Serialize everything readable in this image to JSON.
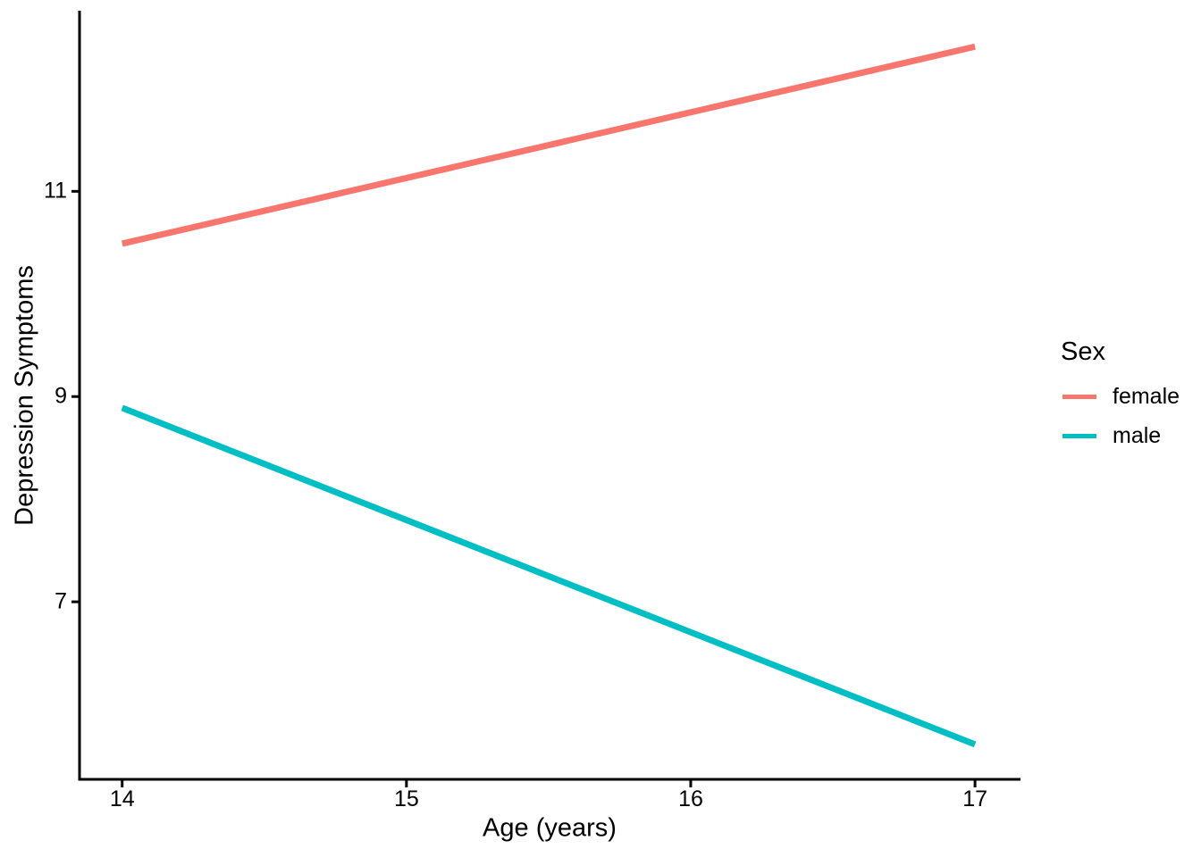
{
  "chart_data": {
    "type": "line",
    "title": "",
    "xlabel": "Age (years)",
    "ylabel": "Depression Symptoms",
    "x_ticks": [
      14,
      15,
      16,
      17
    ],
    "y_ticks": [
      7,
      9,
      11
    ],
    "xlim": [
      13.85,
      17.16
    ],
    "ylim": [
      5.27,
      12.76
    ],
    "grid": false,
    "background": "#FFFFFF",
    "axis_color": "#000000",
    "text_color": "#000000",
    "legend": {
      "title": "Sex",
      "position": "right",
      "entries": [
        {
          "label": "female",
          "color": "#F8766D"
        },
        {
          "label": "male",
          "color": "#00BFC4"
        }
      ]
    },
    "series": [
      {
        "name": "female",
        "color": "#F8766D",
        "x": [
          14,
          17
        ],
        "y": [
          10.49,
          12.41
        ]
      },
      {
        "name": "male",
        "color": "#00BFC4",
        "x": [
          14,
          17
        ],
        "y": [
          8.89,
          5.61
        ]
      }
    ]
  }
}
